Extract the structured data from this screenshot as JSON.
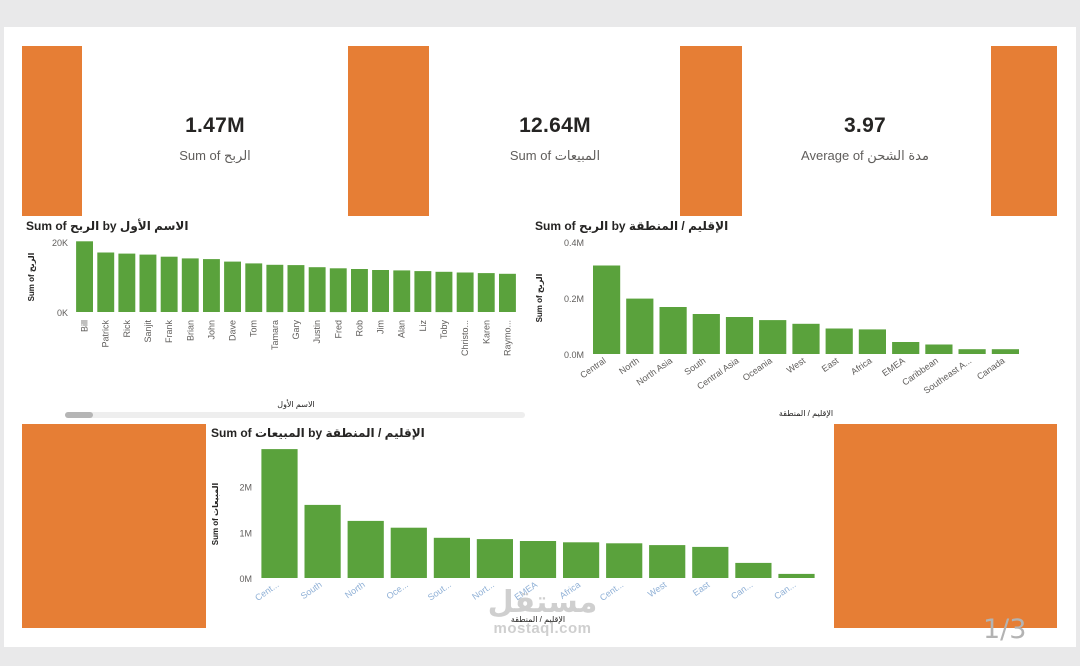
{
  "colors": {
    "accent": "#e67e35",
    "bar": "#5aa23c",
    "text": "#252423",
    "muted": "#605e5c",
    "link_tick": "#8fb0d6"
  },
  "kpis": [
    {
      "value": "1.47M",
      "label": "Sum of الربح"
    },
    {
      "value": "12.64M",
      "label": "Sum of المبيعات"
    },
    {
      "value": "3.97",
      "label": "Average of مدة الشحن"
    }
  ],
  "pager": "1/3",
  "watermark": {
    "logo": "مستقل",
    "site": "mostaql.com"
  },
  "chart_data": [
    {
      "type": "bar",
      "title": "Sum of الربح by الاسم الأول",
      "xlabel": "الاسم الأول",
      "ylabel": "Sum of الربح",
      "ylim": [
        0,
        20000
      ],
      "yticks": [
        0,
        20000
      ],
      "ytick_labels": [
        "0K",
        "20K"
      ],
      "categories": [
        "Bill",
        "Patrick",
        "Rick",
        "Sanjit",
        "Frank",
        "Brian",
        "John",
        "Dave",
        "Tom",
        "Tamara",
        "Gary",
        "Justin",
        "Fred",
        "Rob",
        "Jim",
        "Alan",
        "Liz",
        "Toby",
        "Christo...",
        "Karen",
        "Raymo..."
      ],
      "values": [
        20200,
        17000,
        16700,
        16400,
        15800,
        15300,
        15100,
        14400,
        13900,
        13500,
        13400,
        12800,
        12500,
        12300,
        12000,
        11900,
        11700,
        11500,
        11300,
        11100,
        10900
      ],
      "grid": false,
      "scrollable": true
    },
    {
      "type": "bar",
      "title": "Sum of الربح by الإقليم / المنطقة",
      "xlabel": "الإقليم / المنطقة",
      "ylabel": "Sum of الربح",
      "ylim": [
        0,
        400000
      ],
      "yticks": [
        0,
        200000,
        400000
      ],
      "ytick_labels": [
        "0.0M",
        "0.2M",
        "0.4M"
      ],
      "categories": [
        "Central",
        "North",
        "North Asia",
        "South",
        "Central Asia",
        "Oceania",
        "West",
        "East",
        "Africa",
        "EMEA",
        "Caribbean",
        "Southeast A...",
        "Canada"
      ],
      "values": [
        316000,
        198000,
        168000,
        143000,
        132000,
        121000,
        108000,
        91000,
        88000,
        43000,
        34000,
        17000,
        17000
      ],
      "grid": false
    },
    {
      "type": "bar",
      "title": "Sum of المبيعات by الإقليم / المنطقة",
      "xlabel": "الإقليم / المنطقة",
      "ylabel": "Sum of المبيعات",
      "ylim": [
        0,
        2800000
      ],
      "yticks": [
        0,
        1000000,
        2000000
      ],
      "ytick_labels": [
        "0M",
        "1M",
        "2M"
      ],
      "categories": [
        "Cent...",
        "South",
        "North",
        "Oce...",
        "Sout...",
        "Nort...",
        "EMEA",
        "Africa",
        "Cent...",
        "West",
        "East",
        "Can...",
        "Can..."
      ],
      "values": [
        2820000,
        1600000,
        1250000,
        1100000,
        880000,
        850000,
        810000,
        780000,
        760000,
        720000,
        680000,
        330000,
        90000
      ],
      "grid": false
    }
  ]
}
